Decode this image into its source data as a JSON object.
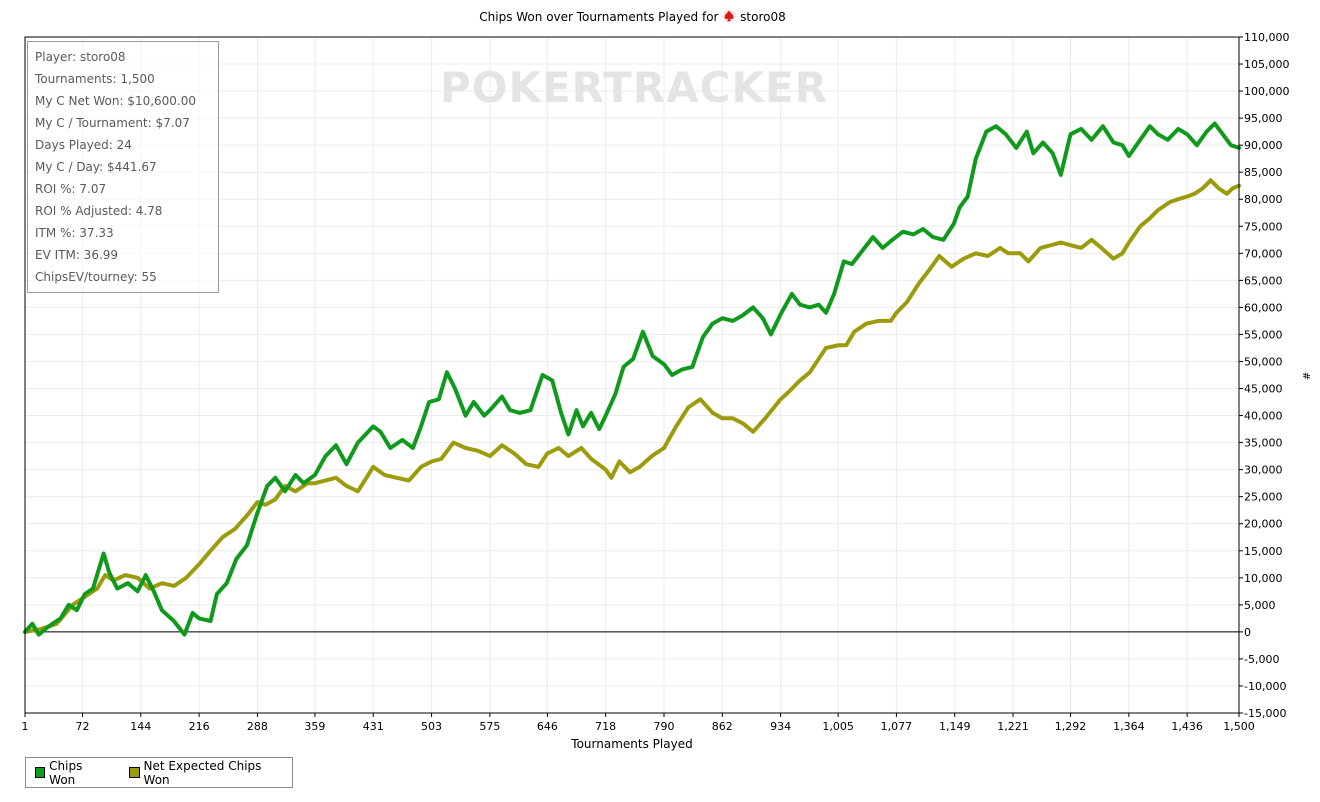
{
  "title": {
    "prefix": "Chips Won over Tournaments Played for",
    "player": "storo08"
  },
  "watermark": "POKERTRACKER",
  "stats": [
    "Player: storo08",
    "Tournaments: 1,500",
    "My C Net Won: $10,600.00",
    "My C / Tournament: $7.07",
    "Days Played: 24",
    "My C / Day: $441.67",
    "ROI %: 7.07",
    "ROI % Adjusted: 4.78",
    "ITM %: 37.33",
    "EV ITM: 36.99",
    "ChipsEV/tourney: 55"
  ],
  "legend": [
    {
      "label": "Chips Won",
      "color": "#0f9a1c"
    },
    {
      "label": "Net Expected Chips Won",
      "color": "#9c9b0c"
    }
  ],
  "chart_data": {
    "type": "line",
    "title": "Chips Won over Tournaments Played for storo08",
    "xlabel": "Tournaments Played",
    "ylabel": "#",
    "xlim": [
      1,
      1500
    ],
    "ylim": [
      -15000,
      110000
    ],
    "x_ticks": [
      "1",
      "72",
      "144",
      "216",
      "288",
      "359",
      "431",
      "503",
      "575",
      "646",
      "718",
      "790",
      "862",
      "934",
      "1,005",
      "1,077",
      "1,149",
      "1,221",
      "1,292",
      "1,364",
      "1,436",
      "1,500"
    ],
    "y_ticks": [
      "-15,000",
      "-10,000",
      "-5,000",
      "0",
      "5,000",
      "10,000",
      "15,000",
      "20,000",
      "25,000",
      "30,000",
      "35,000",
      "40,000",
      "45,000",
      "50,000",
      "55,000",
      "60,000",
      "65,000",
      "70,000",
      "75,000",
      "80,000",
      "85,000",
      "90,000",
      "95,000",
      "100,000",
      "105,000",
      "110,000"
    ],
    "grid": true,
    "legend_position": "bottom-left",
    "series": [
      {
        "name": "Chips Won",
        "color": "#0f9a1c",
        "points": [
          [
            1,
            0
          ],
          [
            10,
            1500
          ],
          [
            18,
            -500
          ],
          [
            30,
            1000
          ],
          [
            45,
            2500
          ],
          [
            55,
            5000
          ],
          [
            65,
            4000
          ],
          [
            75,
            7000
          ],
          [
            85,
            8000
          ],
          [
            98,
            14500
          ],
          [
            105,
            11000
          ],
          [
            115,
            8000
          ],
          [
            128,
            9000
          ],
          [
            140,
            7500
          ],
          [
            150,
            10500
          ],
          [
            160,
            7500
          ],
          [
            170,
            4000
          ],
          [
            185,
            2000
          ],
          [
            198,
            -500
          ],
          [
            208,
            3500
          ],
          [
            216,
            2500
          ],
          [
            230,
            2000
          ],
          [
            238,
            7000
          ],
          [
            250,
            9000
          ],
          [
            262,
            13500
          ],
          [
            275,
            16000
          ],
          [
            288,
            22000
          ],
          [
            300,
            27000
          ],
          [
            310,
            28500
          ],
          [
            322,
            26000
          ],
          [
            335,
            29000
          ],
          [
            345,
            27500
          ],
          [
            359,
            29000
          ],
          [
            372,
            32500
          ],
          [
            385,
            34500
          ],
          [
            398,
            31000
          ],
          [
            412,
            35000
          ],
          [
            431,
            38000
          ],
          [
            440,
            37000
          ],
          [
            452,
            34000
          ],
          [
            467,
            35500
          ],
          [
            480,
            34000
          ],
          [
            490,
            38000
          ],
          [
            500,
            42500
          ],
          [
            512,
            43000
          ],
          [
            522,
            48000
          ],
          [
            532,
            45000
          ],
          [
            545,
            40000
          ],
          [
            555,
            42500
          ],
          [
            568,
            40000
          ],
          [
            575,
            41000
          ],
          [
            590,
            43500
          ],
          [
            600,
            41000
          ],
          [
            612,
            40500
          ],
          [
            625,
            41000
          ],
          [
            640,
            47500
          ],
          [
            652,
            46500
          ],
          [
            663,
            40500
          ],
          [
            672,
            36500
          ],
          [
            682,
            41000
          ],
          [
            690,
            38000
          ],
          [
            700,
            40500
          ],
          [
            710,
            37500
          ],
          [
            718,
            40000
          ],
          [
            730,
            44000
          ],
          [
            740,
            49000
          ],
          [
            752,
            50500
          ],
          [
            764,
            55500
          ],
          [
            776,
            51000
          ],
          [
            790,
            49500
          ],
          [
            800,
            47500
          ],
          [
            812,
            48500
          ],
          [
            825,
            49000
          ],
          [
            838,
            54500
          ],
          [
            850,
            57000
          ],
          [
            862,
            58000
          ],
          [
            875,
            57500
          ],
          [
            887,
            58500
          ],
          [
            900,
            60000
          ],
          [
            912,
            58000
          ],
          [
            922,
            55000
          ],
          [
            935,
            59000
          ],
          [
            948,
            62500
          ],
          [
            958,
            60500
          ],
          [
            970,
            60000
          ],
          [
            981,
            60500
          ],
          [
            990,
            59000
          ],
          [
            1000,
            62500
          ],
          [
            1012,
            68500
          ],
          [
            1022,
            68000
          ],
          [
            1035,
            70500
          ],
          [
            1048,
            73000
          ],
          [
            1060,
            71000
          ],
          [
            1072,
            72500
          ],
          [
            1085,
            74000
          ],
          [
            1098,
            73500
          ],
          [
            1110,
            74500
          ],
          [
            1122,
            73000
          ],
          [
            1135,
            72500
          ],
          [
            1148,
            75500
          ],
          [
            1155,
            78500
          ],
          [
            1165,
            80500
          ],
          [
            1175,
            87500
          ],
          [
            1188,
            92500
          ],
          [
            1200,
            93500
          ],
          [
            1212,
            92000
          ],
          [
            1225,
            89500
          ],
          [
            1238,
            92500
          ],
          [
            1246,
            88500
          ],
          [
            1258,
            90500
          ],
          [
            1270,
            88500
          ],
          [
            1280,
            84500
          ],
          [
            1292,
            92000
          ],
          [
            1305,
            93000
          ],
          [
            1318,
            91000
          ],
          [
            1332,
            93500
          ],
          [
            1345,
            90500
          ],
          [
            1356,
            90000
          ],
          [
            1364,
            88000
          ],
          [
            1378,
            91000
          ],
          [
            1390,
            93500
          ],
          [
            1400,
            92000
          ],
          [
            1412,
            91000
          ],
          [
            1425,
            93000
          ],
          [
            1436,
            92000
          ],
          [
            1448,
            90000
          ],
          [
            1460,
            92500
          ],
          [
            1470,
            94000
          ],
          [
            1480,
            92000
          ],
          [
            1490,
            90000
          ],
          [
            1500,
            89500
          ]
        ]
      },
      {
        "name": "Net Expected Chips Won",
        "color": "#9c9b0c",
        "points": [
          [
            1,
            0
          ],
          [
            20,
            500
          ],
          [
            40,
            1500
          ],
          [
            60,
            5000
          ],
          [
            75,
            6500
          ],
          [
            90,
            8000
          ],
          [
            100,
            10500
          ],
          [
            110,
            9500
          ],
          [
            125,
            10500
          ],
          [
            140,
            10000
          ],
          [
            155,
            8000
          ],
          [
            170,
            9000
          ],
          [
            185,
            8500
          ],
          [
            200,
            10000
          ],
          [
            216,
            12500
          ],
          [
            230,
            15000
          ],
          [
            245,
            17500
          ],
          [
            260,
            19000
          ],
          [
            275,
            21500
          ],
          [
            288,
            24000
          ],
          [
            298,
            23500
          ],
          [
            310,
            24500
          ],
          [
            322,
            27000
          ],
          [
            335,
            26000
          ],
          [
            350,
            27500
          ],
          [
            359,
            27500
          ],
          [
            372,
            28000
          ],
          [
            385,
            28500
          ],
          [
            398,
            27000
          ],
          [
            412,
            26000
          ],
          [
            431,
            30500
          ],
          [
            445,
            29000
          ],
          [
            460,
            28500
          ],
          [
            475,
            28000
          ],
          [
            490,
            30500
          ],
          [
            503,
            31500
          ],
          [
            515,
            32000
          ],
          [
            530,
            35000
          ],
          [
            545,
            34000
          ],
          [
            560,
            33500
          ],
          [
            575,
            32500
          ],
          [
            590,
            34500
          ],
          [
            605,
            33000
          ],
          [
            620,
            31000
          ],
          [
            635,
            30500
          ],
          [
            646,
            33000
          ],
          [
            660,
            34000
          ],
          [
            672,
            32500
          ],
          [
            688,
            34000
          ],
          [
            700,
            32000
          ],
          [
            718,
            30000
          ],
          [
            725,
            28500
          ],
          [
            735,
            31500
          ],
          [
            748,
            29500
          ],
          [
            760,
            30500
          ],
          [
            775,
            32500
          ],
          [
            790,
            34000
          ],
          [
            805,
            38000
          ],
          [
            820,
            41500
          ],
          [
            835,
            43000
          ],
          [
            850,
            40500
          ],
          [
            862,
            39500
          ],
          [
            875,
            39500
          ],
          [
            888,
            38500
          ],
          [
            900,
            37000
          ],
          [
            915,
            39500
          ],
          [
            934,
            43000
          ],
          [
            945,
            44500
          ],
          [
            958,
            46500
          ],
          [
            970,
            48000
          ],
          [
            981,
            50500
          ],
          [
            990,
            52500
          ],
          [
            1005,
            53000
          ],
          [
            1015,
            53000
          ],
          [
            1025,
            55500
          ],
          [
            1040,
            57000
          ],
          [
            1055,
            57500
          ],
          [
            1070,
            57500
          ],
          [
            1077,
            59000
          ],
          [
            1090,
            61000
          ],
          [
            1105,
            64500
          ],
          [
            1118,
            67000
          ],
          [
            1130,
            69500
          ],
          [
            1145,
            67500
          ],
          [
            1160,
            69000
          ],
          [
            1175,
            70000
          ],
          [
            1190,
            69500
          ],
          [
            1205,
            71000
          ],
          [
            1215,
            70000
          ],
          [
            1230,
            70000
          ],
          [
            1240,
            68500
          ],
          [
            1255,
            71000
          ],
          [
            1268,
            71500
          ],
          [
            1280,
            72000
          ],
          [
            1292,
            71500
          ],
          [
            1305,
            71000
          ],
          [
            1318,
            72500
          ],
          [
            1330,
            71000
          ],
          [
            1345,
            69000
          ],
          [
            1356,
            70000
          ],
          [
            1364,
            72000
          ],
          [
            1378,
            75000
          ],
          [
            1390,
            76500
          ],
          [
            1400,
            78000
          ],
          [
            1415,
            79500
          ],
          [
            1425,
            80000
          ],
          [
            1436,
            80500
          ],
          [
            1445,
            81000
          ],
          [
            1455,
            82000
          ],
          [
            1465,
            83500
          ],
          [
            1475,
            82000
          ],
          [
            1485,
            81000
          ],
          [
            1492,
            82000
          ],
          [
            1500,
            82500
          ]
        ]
      }
    ]
  }
}
